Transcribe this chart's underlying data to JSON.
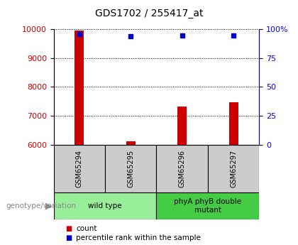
{
  "title": "GDS1702 / 255417_at",
  "samples": [
    "GSM65294",
    "GSM65295",
    "GSM65296",
    "GSM65297"
  ],
  "counts": [
    9950,
    6110,
    7310,
    7460
  ],
  "percentiles": [
    96,
    94,
    95,
    95
  ],
  "ylim_left": [
    6000,
    10000
  ],
  "ylim_right": [
    0,
    100
  ],
  "yticks_left": [
    6000,
    7000,
    8000,
    9000,
    10000
  ],
  "yticks_right": [
    0,
    25,
    50,
    75,
    100
  ],
  "bar_color": "#cc0000",
  "scatter_color": "#0000cc",
  "bar_width": 0.18,
  "groups": [
    {
      "label": "wild type",
      "samples": [
        0,
        1
      ],
      "color": "#99ee99"
    },
    {
      "label": "phyA phyB double\nmutant",
      "samples": [
        2,
        3
      ],
      "color": "#44cc44"
    }
  ],
  "sample_box_color": "#cccccc",
  "legend_count_label": "count",
  "legend_pct_label": "percentile rank within the sample",
  "genotype_label": "genotype/variation"
}
